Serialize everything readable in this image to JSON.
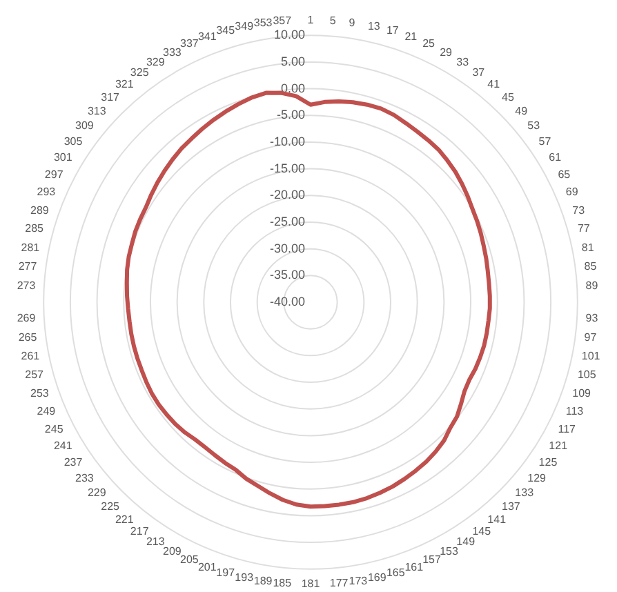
{
  "chart_data": {
    "type": "radar",
    "categories": [
      "1",
      "5",
      "9",
      "13",
      "17",
      "21",
      "25",
      "29",
      "33",
      "37",
      "41",
      "45",
      "49",
      "53",
      "57",
      "61",
      "65",
      "69",
      "73",
      "77",
      "81",
      "85",
      "89",
      "93",
      "97",
      "101",
      "105",
      "109",
      "113",
      "117",
      "121",
      "125",
      "129",
      "133",
      "137",
      "141",
      "145",
      "149",
      "153",
      "157",
      "161",
      "165",
      "169",
      "173",
      "177",
      "181",
      "185",
      "189",
      "193",
      "197",
      "201",
      "205",
      "209",
      "213",
      "217",
      "221",
      "225",
      "229",
      "233",
      "237",
      "241",
      "245",
      "249",
      "253",
      "257",
      "261",
      "265",
      "269",
      "273",
      "277",
      "281",
      "285",
      "289",
      "293",
      "297",
      "301",
      "305",
      "309",
      "313",
      "317",
      "321",
      "325",
      "329",
      "333",
      "337",
      "341",
      "345",
      "349",
      "353",
      "357"
    ],
    "series": [
      {
        "color": "#c0504d",
        "values": [
          -3.0,
          -2.4,
          -2.0,
          -1.7,
          -1.5,
          -1.4,
          -1.6,
          -2.0,
          -2.3,
          -2.5,
          -2.7,
          -3.1,
          -3.5,
          -4.0,
          -4.5,
          -5.0,
          -5.3,
          -5.6,
          -5.9,
          -6.1,
          -6.3,
          -6.4,
          -6.4,
          -6.4,
          -6.5,
          -6.5,
          -6.5,
          -6.6,
          -6.7,
          -6.9,
          -6.7,
          -6.0,
          -5.2,
          -4.8,
          -4.0,
          -3.5,
          -3.1,
          -2.8,
          -2.5,
          -2.2,
          -2.0,
          -1.8,
          -1.7,
          -1.7,
          -1.7,
          -1.7,
          -2.0,
          -2.6,
          -3.4,
          -4.2,
          -4.8,
          -5.6,
          -5.9,
          -6.2,
          -6.4,
          -6.4,
          -6.1,
          -5.9,
          -5.8,
          -5.7,
          -5.7,
          -5.8,
          -5.9,
          -5.9,
          -5.9,
          -5.9,
          -5.9,
          -5.8,
          -5.6,
          -5.4,
          -5.1,
          -4.9,
          -4.8,
          -4.6,
          -4.5,
          -4.4,
          -4.0,
          -3.6,
          -3.2,
          -2.8,
          -2.4,
          -2.1,
          -1.7,
          -1.3,
          -0.9,
          -0.5,
          -0.1,
          0.1,
          -0.4,
          -1.3
        ]
      }
    ],
    "ylim": [
      -40,
      10
    ],
    "yticks": [
      {
        "value": -40,
        "label": "-40.00"
      },
      {
        "value": -35,
        "label": "-35.00"
      },
      {
        "value": -30,
        "label": "-30.00"
      },
      {
        "value": -25,
        "label": "-25.00"
      },
      {
        "value": -20,
        "label": "-20.00"
      },
      {
        "value": -15,
        "label": "-15.00"
      },
      {
        "value": -10,
        "label": "-10.00"
      },
      {
        "value": -5,
        "label": "-5.00"
      },
      {
        "value": 0,
        "label": "0.00"
      },
      {
        "value": 5,
        "label": "5.00"
      },
      {
        "value": 10,
        "label": "10.00"
      }
    ],
    "grid": true
  }
}
